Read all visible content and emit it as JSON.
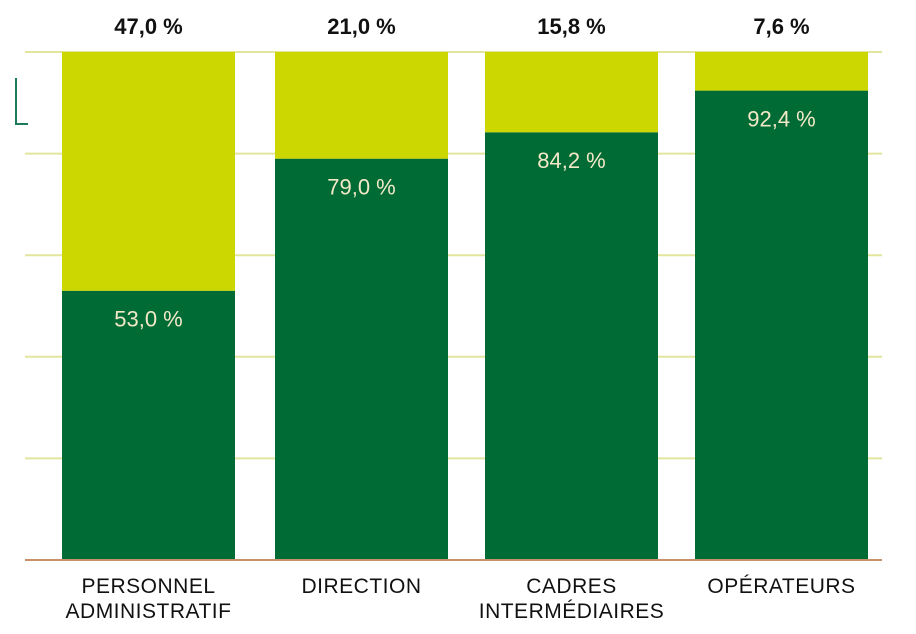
{
  "chart_data": {
    "type": "stacked-bar",
    "categories": [
      "PERSONNEL ADMINISTRATIF",
      "DIRECTION",
      "CADRES INTERMÉDIAIRES",
      "OPÉRATEURS"
    ],
    "series": [
      {
        "color": "#006b35",
        "values": [
          53.0,
          79.0,
          84.2,
          92.4
        ],
        "value_labels": [
          "53,0 %",
          "79,0 %",
          "84,2 %",
          "92,4 %"
        ]
      },
      {
        "color": "#ccd600",
        "values": [
          47.0,
          21.0,
          15.8,
          7.6
        ],
        "value_labels": [
          "47,0 %",
          "21,0 %",
          "15,8 %",
          "7,6 %"
        ]
      }
    ],
    "ylim": [
      0,
      100
    ],
    "yticks": [
      0,
      20,
      40,
      60,
      80,
      100
    ],
    "grid": true
  }
}
